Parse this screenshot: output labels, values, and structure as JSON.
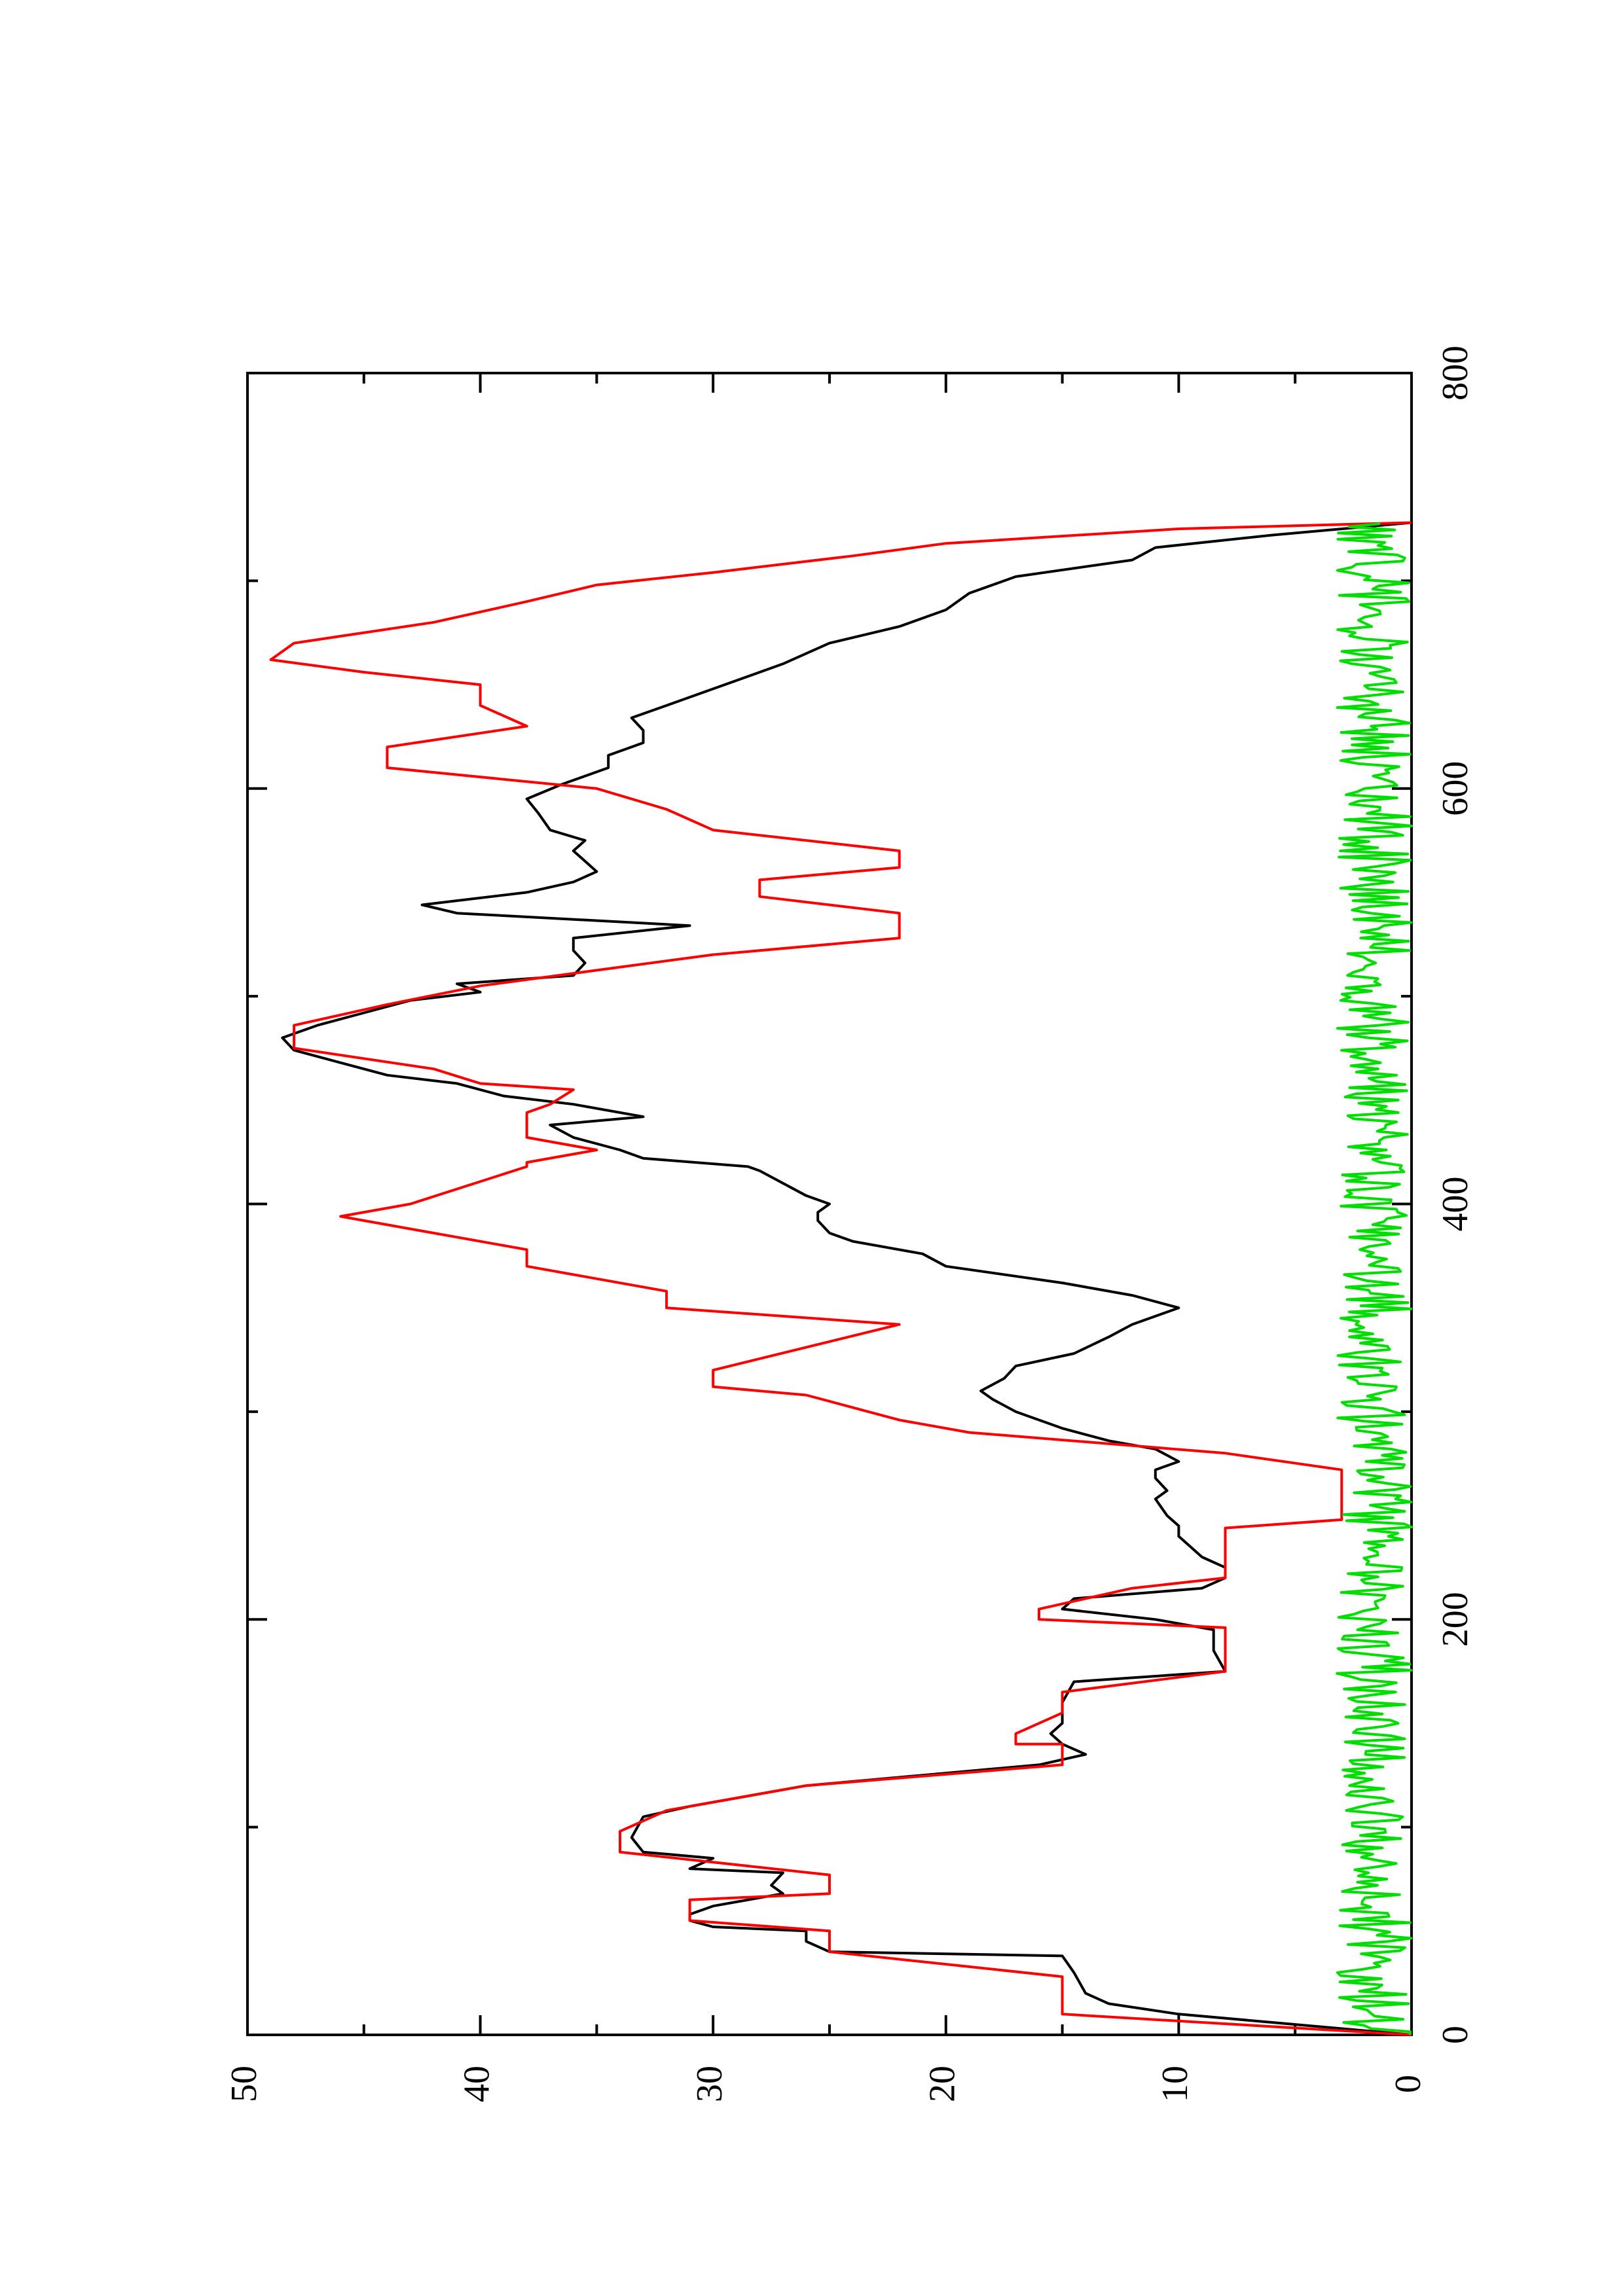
{
  "chart_data": {
    "type": "line",
    "title": "",
    "xlabel": "",
    "ylabel": "",
    "xlim": [
      0,
      800
    ],
    "ylim": [
      0,
      50
    ],
    "x_ticks": [
      "0",
      "200",
      "400",
      "600",
      "800"
    ],
    "y_ticks": [
      "0",
      "10",
      "20",
      "30",
      "40",
      "50"
    ],
    "x_minor_ticks": [
      100,
      300,
      500,
      700
    ],
    "y_minor_ticks": [
      5,
      15,
      25,
      35,
      45
    ],
    "orientation": "rotated 90 degrees counter-clockwise on the page",
    "grid": false,
    "legend": "none",
    "series": [
      {
        "color": "#000000",
        "points": [
          [
            0,
            0
          ],
          [
            5,
            5
          ],
          [
            10,
            10
          ],
          [
            15,
            13
          ],
          [
            20,
            14
          ],
          [
            30,
            14.5
          ],
          [
            38,
            15
          ],
          [
            40,
            25
          ],
          [
            45,
            26
          ],
          [
            50,
            26
          ],
          [
            52,
            30
          ],
          [
            55,
            31
          ],
          [
            58,
            31
          ],
          [
            62,
            30
          ],
          [
            68,
            27
          ],
          [
            72,
            27.5
          ],
          [
            78,
            27
          ],
          [
            80,
            31
          ],
          [
            85,
            30
          ],
          [
            88,
            33
          ],
          [
            95,
            33.5
          ],
          [
            105,
            33
          ],
          [
            110,
            31
          ],
          [
            120,
            26
          ],
          [
            130,
            16
          ],
          [
            135,
            14
          ],
          [
            140,
            15
          ],
          [
            145,
            15.5
          ],
          [
            150,
            15
          ],
          [
            160,
            15
          ],
          [
            170,
            14.5
          ],
          [
            175,
            8
          ],
          [
            185,
            8.5
          ],
          [
            195,
            8.5
          ],
          [
            200,
            11
          ],
          [
            205,
            15
          ],
          [
            210,
            14.5
          ],
          [
            215,
            9
          ],
          [
            220,
            8
          ],
          [
            225,
            8
          ],
          [
            230,
            9
          ],
          [
            240,
            10
          ],
          [
            245,
            10
          ],
          [
            250,
            10.5
          ],
          [
            258,
            11
          ],
          [
            262,
            10.5
          ],
          [
            268,
            11
          ],
          [
            272,
            11
          ],
          [
            276,
            10
          ],
          [
            282,
            11
          ],
          [
            286,
            13
          ],
          [
            292,
            15
          ],
          [
            300,
            17
          ],
          [
            306,
            18
          ],
          [
            310,
            18.5
          ],
          [
            316,
            17.5
          ],
          [
            322,
            17
          ],
          [
            328,
            14.5
          ],
          [
            336,
            13
          ],
          [
            342,
            12
          ],
          [
            350,
            10
          ],
          [
            356,
            12
          ],
          [
            362,
            15
          ],
          [
            370,
            20
          ],
          [
            376,
            21
          ],
          [
            382,
            24
          ],
          [
            386,
            25
          ],
          [
            392,
            25.5
          ],
          [
            396,
            25.5
          ],
          [
            400,
            25
          ],
          [
            404,
            26
          ],
          [
            410,
            27
          ],
          [
            416,
            28
          ],
          [
            418,
            28.5
          ],
          [
            422,
            33
          ],
          [
            426,
            34
          ],
          [
            432,
            36
          ],
          [
            438,
            37
          ],
          [
            442,
            33
          ],
          [
            448,
            36
          ],
          [
            452,
            39
          ],
          [
            458,
            41
          ],
          [
            462,
            44
          ],
          [
            468,
            46
          ],
          [
            474,
            48
          ],
          [
            480,
            48.5
          ],
          [
            486,
            47
          ],
          [
            492,
            45
          ],
          [
            498,
            43
          ],
          [
            502,
            40
          ],
          [
            506,
            41
          ],
          [
            510,
            36
          ],
          [
            516,
            35.5
          ],
          [
            522,
            36
          ],
          [
            528,
            36
          ],
          [
            534,
            31
          ],
          [
            540,
            41
          ],
          [
            544,
            42.5
          ],
          [
            550,
            38
          ],
          [
            555,
            36
          ],
          [
            560,
            35
          ],
          [
            565,
            35.5
          ],
          [
            570,
            36
          ],
          [
            575,
            35.5
          ],
          [
            580,
            37
          ],
          [
            588,
            37.5
          ],
          [
            595,
            38
          ],
          [
            602,
            36.5
          ],
          [
            610,
            34.5
          ],
          [
            616,
            34.5
          ],
          [
            622,
            33
          ],
          [
            628,
            33
          ],
          [
            634,
            33.5
          ],
          [
            642,
            31.5
          ],
          [
            652,
            29
          ],
          [
            660,
            27
          ],
          [
            670,
            25
          ],
          [
            678,
            22
          ],
          [
            686,
            20
          ],
          [
            694,
            19
          ],
          [
            702,
            17
          ],
          [
            710,
            12
          ],
          [
            716,
            11
          ],
          [
            722,
            6
          ],
          [
            728,
            0
          ]
        ]
      },
      {
        "color": "#ff0000",
        "points": [
          [
            0,
            0
          ],
          [
            10,
            15
          ],
          [
            28,
            15
          ],
          [
            40,
            25
          ],
          [
            50,
            25
          ],
          [
            55,
            31
          ],
          [
            65,
            31
          ],
          [
            68,
            25
          ],
          [
            77,
            25
          ],
          [
            88,
            34
          ],
          [
            98,
            34
          ],
          [
            108,
            32
          ],
          [
            120,
            26
          ],
          [
            130,
            15
          ],
          [
            140,
            15
          ],
          [
            140,
            17
          ],
          [
            145,
            17
          ],
          [
            150,
            16
          ],
          [
            155,
            15
          ],
          [
            165,
            15
          ],
          [
            175,
            8
          ],
          [
            196,
            8
          ],
          [
            200,
            16
          ],
          [
            205,
            16
          ],
          [
            215,
            12
          ],
          [
            220,
            8
          ],
          [
            244,
            8
          ],
          [
            248,
            3
          ],
          [
            272,
            3
          ],
          [
            280,
            8
          ],
          [
            290,
            19
          ],
          [
            296,
            22
          ],
          [
            308,
            26
          ],
          [
            312,
            30
          ],
          [
            320,
            30
          ],
          [
            342,
            22
          ],
          [
            350,
            32
          ],
          [
            358,
            32
          ],
          [
            370,
            38
          ],
          [
            378,
            38
          ],
          [
            388,
            43
          ],
          [
            394,
            46
          ],
          [
            400,
            43
          ],
          [
            418,
            38
          ],
          [
            420,
            38
          ],
          [
            426,
            35
          ],
          [
            432,
            38
          ],
          [
            444,
            38
          ],
          [
            448,
            37
          ],
          [
            455,
            36
          ],
          [
            458,
            40
          ],
          [
            465,
            42
          ],
          [
            475,
            48
          ],
          [
            486,
            48
          ],
          [
            496,
            44
          ],
          [
            505,
            40
          ],
          [
            520,
            30
          ],
          [
            528,
            22
          ],
          [
            540,
            22
          ],
          [
            548,
            28
          ],
          [
            556,
            28
          ],
          [
            562,
            22
          ],
          [
            570,
            22
          ],
          [
            580,
            30
          ],
          [
            590,
            32
          ],
          [
            600,
            35
          ],
          [
            610,
            44
          ],
          [
            620,
            44
          ],
          [
            630,
            38
          ],
          [
            640,
            40
          ],
          [
            650,
            40
          ],
          [
            656,
            45
          ],
          [
            662,
            49
          ],
          [
            670,
            48
          ],
          [
            680,
            42
          ],
          [
            690,
            38
          ],
          [
            698,
            35
          ],
          [
            704,
            30
          ],
          [
            712,
            24
          ],
          [
            718,
            20
          ],
          [
            725,
            10
          ],
          [
            728,
            0
          ]
        ]
      },
      {
        "color": "#00dd00",
        "description": "noisy low-level series near zero",
        "range": [
          0,
          3.2
        ],
        "x_range": [
          0,
          728
        ]
      }
    ]
  }
}
